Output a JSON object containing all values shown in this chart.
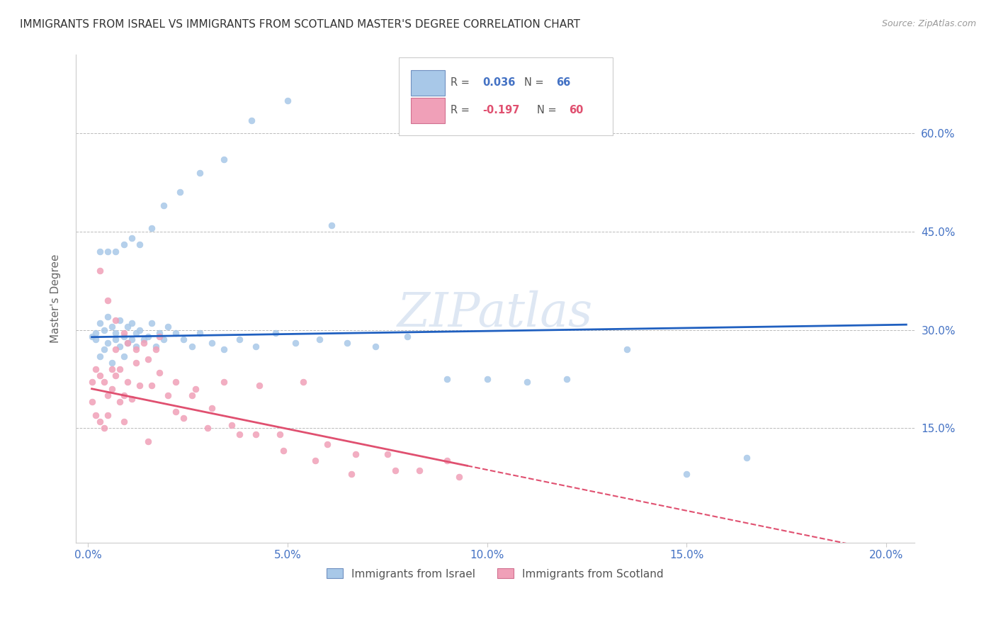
{
  "title": "IMMIGRANTS FROM ISRAEL VS IMMIGRANTS FROM SCOTLAND MASTER'S DEGREE CORRELATION CHART",
  "source": "Source: ZipAtlas.com",
  "ylabel": "Master's Degree",
  "legend_r1": "R = 0.036",
  "legend_n1": "N = 66",
  "legend_r2": "R = -0.197",
  "legend_n2": "N = 60",
  "color_israel": "#A8C8E8",
  "color_scotland": "#F0A0B8",
  "color_trendline_israel": "#2060C0",
  "color_trendline_scotland": "#E05070",
  "color_axis": "#4472C4",
  "watermark": "ZIPatlas",
  "israel_x": [
    0.001,
    0.002,
    0.002,
    0.003,
    0.003,
    0.004,
    0.004,
    0.005,
    0.005,
    0.006,
    0.006,
    0.007,
    0.007,
    0.008,
    0.008,
    0.009,
    0.009,
    0.01,
    0.01,
    0.011,
    0.011,
    0.012,
    0.012,
    0.013,
    0.014,
    0.015,
    0.016,
    0.017,
    0.018,
    0.019,
    0.02,
    0.022,
    0.024,
    0.026,
    0.028,
    0.031,
    0.034,
    0.038,
    0.042,
    0.047,
    0.052,
    0.058,
    0.065,
    0.072,
    0.08,
    0.09,
    0.1,
    0.11,
    0.12,
    0.135,
    0.15,
    0.165,
    0.003,
    0.005,
    0.007,
    0.009,
    0.011,
    0.013,
    0.016,
    0.019,
    0.023,
    0.028,
    0.034,
    0.041,
    0.05,
    0.061
  ],
  "israel_y": [
    0.29,
    0.295,
    0.285,
    0.26,
    0.31,
    0.27,
    0.3,
    0.28,
    0.32,
    0.25,
    0.305,
    0.285,
    0.295,
    0.275,
    0.315,
    0.26,
    0.29,
    0.28,
    0.305,
    0.285,
    0.31,
    0.295,
    0.275,
    0.3,
    0.285,
    0.29,
    0.31,
    0.275,
    0.295,
    0.285,
    0.305,
    0.295,
    0.285,
    0.275,
    0.295,
    0.28,
    0.27,
    0.285,
    0.275,
    0.295,
    0.28,
    0.285,
    0.28,
    0.275,
    0.29,
    0.225,
    0.225,
    0.22,
    0.225,
    0.27,
    0.08,
    0.105,
    0.42,
    0.42,
    0.42,
    0.43,
    0.44,
    0.43,
    0.455,
    0.49,
    0.51,
    0.54,
    0.56,
    0.62,
    0.65,
    0.46
  ],
  "scotland_x": [
    0.001,
    0.001,
    0.002,
    0.002,
    0.003,
    0.003,
    0.004,
    0.004,
    0.005,
    0.005,
    0.006,
    0.006,
    0.007,
    0.007,
    0.008,
    0.008,
    0.009,
    0.009,
    0.01,
    0.01,
    0.011,
    0.012,
    0.013,
    0.014,
    0.015,
    0.016,
    0.017,
    0.018,
    0.02,
    0.022,
    0.024,
    0.027,
    0.03,
    0.034,
    0.038,
    0.043,
    0.048,
    0.054,
    0.06,
    0.067,
    0.075,
    0.083,
    0.093,
    0.003,
    0.005,
    0.007,
    0.009,
    0.012,
    0.015,
    0.018,
    0.022,
    0.026,
    0.031,
    0.036,
    0.042,
    0.049,
    0.057,
    0.066,
    0.077,
    0.09
  ],
  "scotland_y": [
    0.22,
    0.19,
    0.24,
    0.17,
    0.23,
    0.16,
    0.22,
    0.15,
    0.2,
    0.17,
    0.24,
    0.21,
    0.23,
    0.27,
    0.19,
    0.24,
    0.2,
    0.16,
    0.22,
    0.28,
    0.195,
    0.25,
    0.215,
    0.28,
    0.13,
    0.215,
    0.27,
    0.29,
    0.2,
    0.175,
    0.165,
    0.21,
    0.15,
    0.22,
    0.14,
    0.215,
    0.14,
    0.22,
    0.125,
    0.11,
    0.11,
    0.085,
    0.075,
    0.39,
    0.345,
    0.315,
    0.295,
    0.27,
    0.255,
    0.235,
    0.22,
    0.2,
    0.18,
    0.155,
    0.14,
    0.115,
    0.1,
    0.08,
    0.085,
    0.1
  ],
  "dot_size": 40,
  "xlim": [
    -0.003,
    0.207
  ],
  "ylim": [
    -0.025,
    0.72
  ],
  "yticks": [
    0.15,
    0.3,
    0.45,
    0.6
  ],
  "xticks": [
    0.0,
    0.05,
    0.1,
    0.15,
    0.2
  ]
}
